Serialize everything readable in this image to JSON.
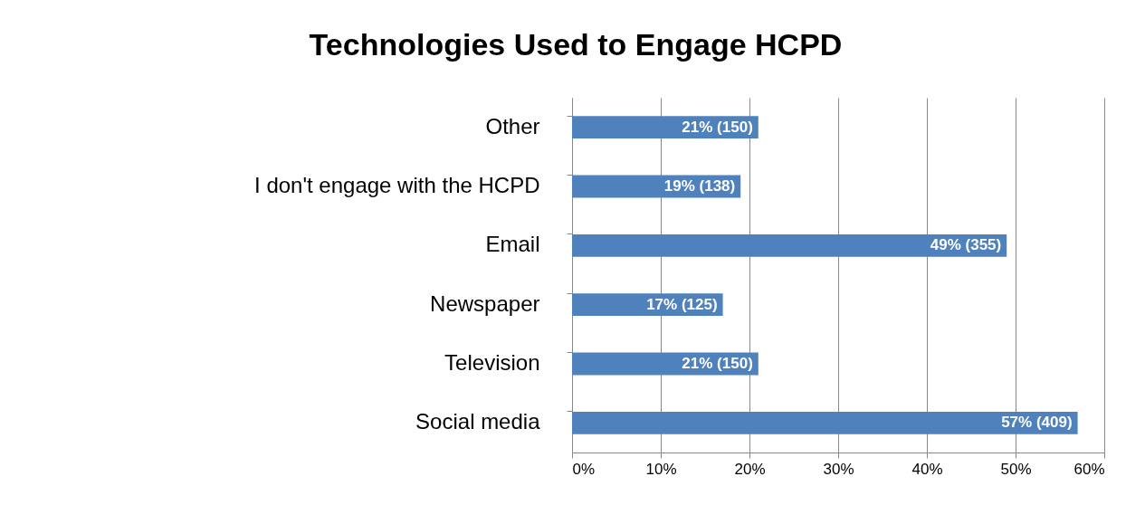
{
  "chart_data": {
    "type": "bar",
    "orientation": "horizontal",
    "title": "Technologies Used to Engage HCPD",
    "categories": [
      "Other",
      "I don't engage with the HCPD",
      "Email",
      "Newspaper",
      "Television",
      "Social media"
    ],
    "values": [
      21,
      19,
      49,
      17,
      21,
      57
    ],
    "value_labels": [
      "21% (150)",
      "19% (138)",
      "49% (355)",
      "17% (125)",
      "21% (150)",
      "57% (409)"
    ],
    "color": "#4f81bd",
    "xlim": [
      0,
      60
    ],
    "xticks": [
      {
        "value": 0,
        "label": "0%"
      },
      {
        "value": 10,
        "label": "10%"
      },
      {
        "value": 20,
        "label": "20%"
      },
      {
        "value": 30,
        "label": "30%"
      },
      {
        "value": 40,
        "label": "40%"
      },
      {
        "value": 50,
        "label": "50%"
      },
      {
        "value": 60,
        "label": "60%"
      }
    ],
    "grid": "x"
  }
}
